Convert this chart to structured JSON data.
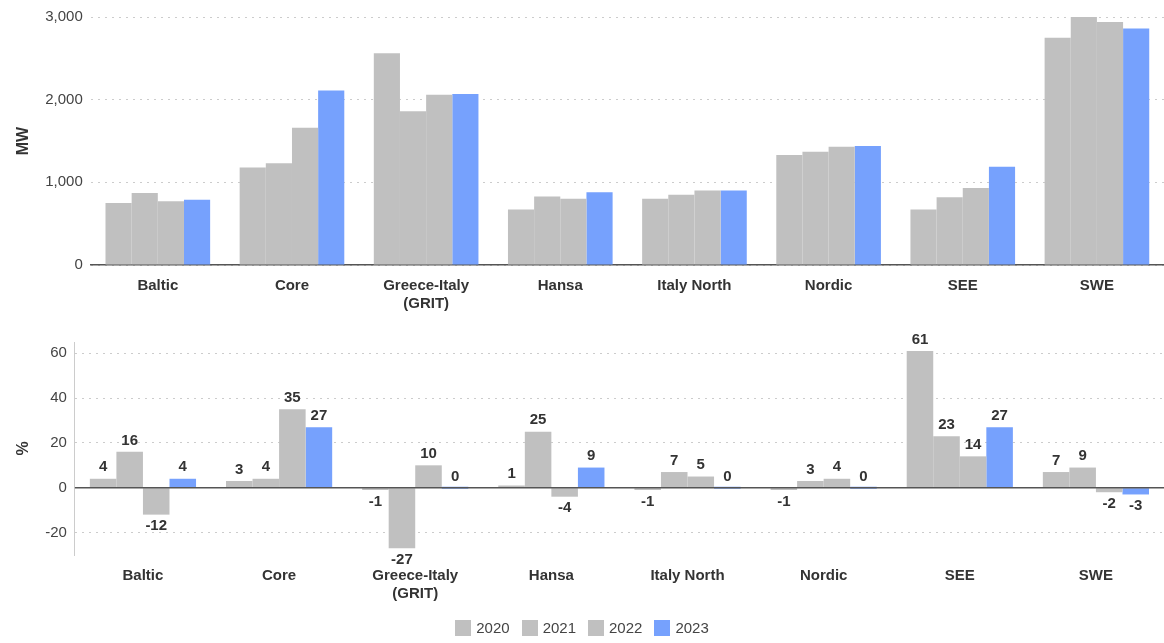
{
  "chart_data": [
    {
      "type": "bar",
      "ylabel": "MW",
      "categories": [
        "Baltic",
        "Core",
        "Greece-Italy (GRIT)",
        "Hansa",
        "Italy North",
        "Nordic",
        "SEE",
        "SWE"
      ],
      "series": [
        {
          "color": "#c0c0c0",
          "values": [
            750,
            1180,
            2560,
            670,
            800,
            1330,
            670,
            2750
          ]
        },
        {
          "color": "#c0c0c0",
          "values": [
            870,
            1230,
            1860,
            830,
            850,
            1370,
            820,
            3000
          ]
        },
        {
          "color": "#c0c0c0",
          "values": [
            770,
            1660,
            2060,
            800,
            900,
            1430,
            930,
            2940
          ]
        },
        {
          "color": "#76a1fd",
          "values": [
            790,
            2110,
            2070,
            880,
            900,
            1440,
            1190,
            2860
          ]
        }
      ],
      "ylim": [
        0,
        3000
      ],
      "yticks": [
        {
          "value": 0,
          "label": "0"
        },
        {
          "value": 1000,
          "label": "1,000"
        },
        {
          "value": 2000,
          "label": "2,000"
        },
        {
          "value": 3000,
          "label": "3,000"
        }
      ],
      "grid": "y",
      "legend": false
    },
    {
      "type": "bar",
      "ylabel": "%",
      "categories": [
        "Baltic",
        "Core",
        "Greece-Italy (GRIT)",
        "Hansa",
        "Italy North",
        "Nordic",
        "SEE",
        "SWE"
      ],
      "series": [
        {
          "name": "2020",
          "color": "#c0c0c0",
          "values": [
            4,
            3,
            -1,
            1,
            -1,
            -1,
            61,
            7
          ]
        },
        {
          "name": "2021",
          "color": "#c0c0c0",
          "values": [
            16,
            4,
            -27,
            25,
            7,
            3,
            23,
            9
          ]
        },
        {
          "name": "2022",
          "color": "#c0c0c0",
          "values": [
            -12,
            35,
            10,
            -4,
            5,
            4,
            14,
            -2
          ]
        },
        {
          "name": "2023",
          "color": "#76a1fd",
          "values": [
            4,
            27,
            0,
            9,
            0,
            0,
            27,
            -3
          ]
        }
      ],
      "ylim": [
        -30,
        65
      ],
      "yticks": [
        -20,
        0,
        20,
        40,
        60
      ],
      "grid": "y",
      "data_labels": true,
      "legend": "bottom",
      "ref_lines": [
        {
          "axis": "y",
          "value": 0,
          "color": "#555555"
        }
      ]
    }
  ]
}
